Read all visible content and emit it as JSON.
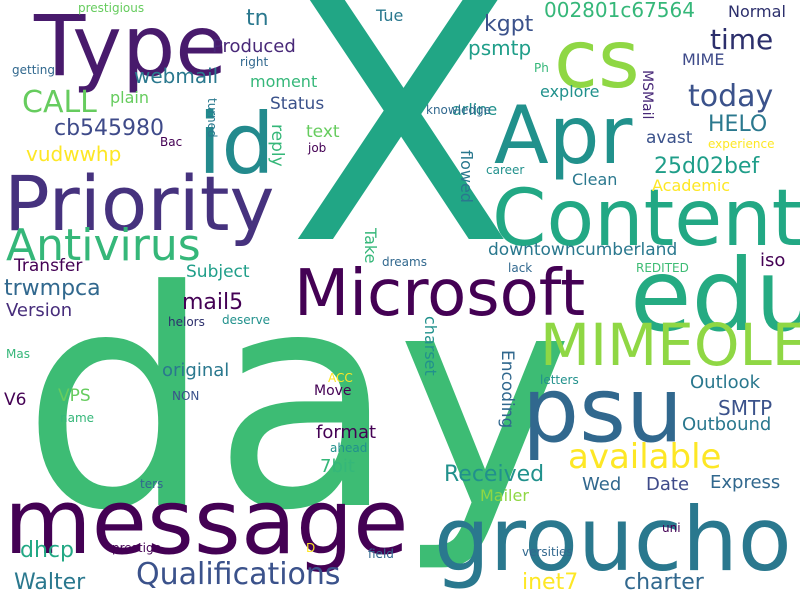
{
  "words": [
    {
      "text": "X",
      "color": "#21a685"
    },
    {
      "text": "day",
      "color": "#3dbc74"
    },
    {
      "text": "message",
      "color": "#440154"
    },
    {
      "text": "groucho",
      "color": "#2a788e"
    },
    {
      "text": "Type",
      "color": "#481a6c"
    },
    {
      "text": "Priority",
      "color": "#46327e"
    },
    {
      "text": "Content",
      "color": "#22a884"
    },
    {
      "text": "Microsoft",
      "color": "#440154"
    },
    {
      "text": "edu",
      "color": "#25ab82"
    },
    {
      "text": "Apr",
      "color": "#21918c"
    },
    {
      "text": "psu",
      "color": "#31688e"
    },
    {
      "text": "id",
      "color": "#238a8d"
    },
    {
      "text": "cs",
      "color": "#8fd744"
    },
    {
      "text": "MIMEOLE",
      "color": "#8fd744"
    },
    {
      "text": "Antivirus",
      "color": "#35b779"
    },
    {
      "text": "Qualifications",
      "color": "#3b528b"
    },
    {
      "text": "available",
      "color": "#fde725"
    },
    {
      "text": "today",
      "color": "#3b528b"
    },
    {
      "text": "time",
      "color": "#2c2f6c"
    },
    {
      "text": "CALL",
      "color": "#66cc5e"
    },
    {
      "text": "cb545980",
      "color": "#3e4a89"
    },
    {
      "text": "002801c67564",
      "color": "#35b779"
    },
    {
      "text": "25d02bef",
      "color": "#1f9e89"
    },
    {
      "text": "HELO",
      "color": "#2a788e"
    },
    {
      "text": "mail5",
      "color": "#440154"
    },
    {
      "text": "SMTP",
      "color": "#3b528b"
    },
    {
      "text": "Received",
      "color": "#21918c"
    },
    {
      "text": "Walter",
      "color": "#2a788e"
    },
    {
      "text": "charter",
      "color": "#31688e"
    },
    {
      "text": "inet7",
      "color": "#fde725"
    },
    {
      "text": "dhcp",
      "color": "#22a884"
    },
    {
      "text": "Outlook",
      "color": "#2a788e"
    },
    {
      "text": "Outbound",
      "color": "#2a788e"
    },
    {
      "text": "Express",
      "color": "#31688e"
    },
    {
      "text": "trwmpca",
      "color": "#31688e"
    },
    {
      "text": "webmail",
      "color": "#2a788e"
    },
    {
      "text": "kgpt",
      "color": "#3b528b"
    },
    {
      "text": "psmtp",
      "color": "#1f9e89"
    },
    {
      "text": "vudwwhp",
      "color": "#fde725"
    },
    {
      "text": "Transfer",
      "color": "#440154"
    },
    {
      "text": "Version",
      "color": "#472d7b"
    },
    {
      "text": "original",
      "color": "#2a788e"
    },
    {
      "text": "Produced",
      "color": "#482878"
    },
    {
      "text": "format",
      "color": "#440154"
    },
    {
      "text": "7bit",
      "color": "#35b779"
    },
    {
      "text": "Wed",
      "color": "#31688e"
    },
    {
      "text": "Date",
      "color": "#3e4a89"
    },
    {
      "text": "Mailer",
      "color": "#8fd744"
    },
    {
      "text": "explore",
      "color": "#21918c"
    },
    {
      "text": "avast",
      "color": "#3b528b"
    },
    {
      "text": "Clean",
      "color": "#2a788e"
    },
    {
      "text": "Academic",
      "color": "#fde725"
    },
    {
      "text": "downtowncumberland",
      "color": "#2a788e"
    },
    {
      "text": "iso",
      "color": "#440154"
    },
    {
      "text": "Subject",
      "color": "#1f9e89"
    },
    {
      "text": "Status",
      "color": "#3b528b"
    },
    {
      "text": "reply",
      "color": "#35b779"
    },
    {
      "text": "text",
      "color": "#66cc5e"
    },
    {
      "text": "Take",
      "color": "#35b779"
    },
    {
      "text": "flowed",
      "color": "#2a788e"
    },
    {
      "text": "tn",
      "color": "#2a788e"
    },
    {
      "text": "Tue",
      "color": "#2a788e"
    },
    {
      "text": "Normal",
      "color": "#2c2f6c"
    },
    {
      "text": "MIME",
      "color": "#3e4a89"
    },
    {
      "text": "moment",
      "color": "#35b779"
    },
    {
      "text": "plain",
      "color": "#66cc5e"
    },
    {
      "text": "arline",
      "color": "#21918c"
    },
    {
      "text": "MSMail",
      "color": "#482878"
    },
    {
      "text": "charset",
      "color": "#21918c"
    },
    {
      "text": "Encoding",
      "color": "#31688e"
    },
    {
      "text": "VPS",
      "color": "#66cc5e"
    },
    {
      "text": "V6",
      "color": "#440154"
    },
    {
      "text": "Move",
      "color": "#440154"
    },
    {
      "text": "ACC",
      "color": "#fde725"
    },
    {
      "text": "ahead",
      "color": "#21918c"
    },
    {
      "text": "prestigious",
      "color": "#66cc5e"
    },
    {
      "text": "getting",
      "color": "#31688e"
    },
    {
      "text": "right",
      "color": "#31688e"
    },
    {
      "text": "turned",
      "color": "#2a788e"
    },
    {
      "text": "Bac",
      "color": "#440154"
    },
    {
      "text": "job",
      "color": "#440154"
    },
    {
      "text": "knowledge",
      "color": "#31688e"
    },
    {
      "text": "Ph",
      "color": "#35b779"
    },
    {
      "text": "experience",
      "color": "#fde725"
    },
    {
      "text": "career",
      "color": "#21918c"
    },
    {
      "text": "dreams",
      "color": "#31688e"
    },
    {
      "text": "lack",
      "color": "#31688e"
    },
    {
      "text": "REDITED",
      "color": "#3dbc74"
    },
    {
      "text": "helors",
      "color": "#2c2f6c"
    },
    {
      "text": "deserve",
      "color": "#21918c"
    },
    {
      "text": "Mas",
      "color": "#35b779"
    },
    {
      "text": "NON",
      "color": "#3b528b"
    },
    {
      "text": "name",
      "color": "#35b779"
    },
    {
      "text": "letters",
      "color": "#21918c"
    },
    {
      "text": "ters",
      "color": "#31688e"
    },
    {
      "text": "prestige",
      "color": "#440154"
    },
    {
      "text": "D",
      "color": "#fde725"
    },
    {
      "text": "field",
      "color": "#31688e"
    },
    {
      "text": "uni",
      "color": "#440154"
    },
    {
      "text": "versities",
      "color": "#31688e"
    }
  ]
}
